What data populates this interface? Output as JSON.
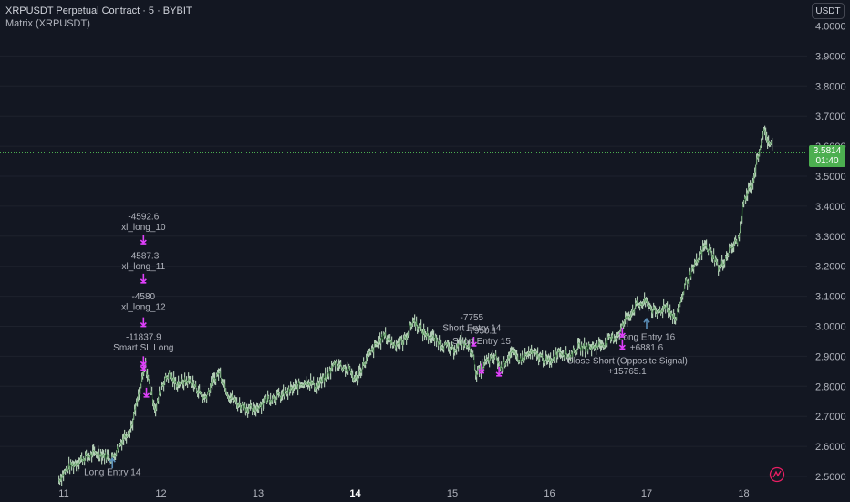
{
  "header": {
    "title": "XRPUSDT Perpetual Contract · 5 · BYBIT",
    "indicator": "Matrix (XRPUSDT)"
  },
  "currency_button": "USDT",
  "current_price": {
    "price": "3.5814",
    "countdown": "01:40"
  },
  "colors": {
    "background": "#131722",
    "candle": "#c8e6c9",
    "trade_marker": "#e040fb",
    "entry_arrow": "#5b8fb9",
    "price_tag": "#4caf50",
    "axis_text": "#b2b5be"
  },
  "chart_data": {
    "type": "line",
    "price_axis": {
      "ticks": [
        "4.0000",
        "3.9000",
        "3.8000",
        "3.7000",
        "3.6000",
        "3.5000",
        "3.4000",
        "3.3000",
        "3.2000",
        "3.1000",
        "3.0000",
        "2.9000",
        "2.8000",
        "2.7000",
        "2.6000",
        "2.5000"
      ],
      "range": [
        2.5,
        4.0
      ]
    },
    "time_axis": {
      "ticks": [
        {
          "label": "11",
          "bold": false
        },
        {
          "label": "12",
          "bold": false
        },
        {
          "label": "13",
          "bold": false
        },
        {
          "label": "14",
          "bold": true
        },
        {
          "label": "15",
          "bold": false
        },
        {
          "label": "16",
          "bold": false
        },
        {
          "label": "17",
          "bold": false
        },
        {
          "label": "18",
          "bold": false
        }
      ],
      "range": [
        10.95,
        18.3
      ]
    },
    "series": [
      {
        "values": [
          [
            10.95,
            2.49
          ],
          [
            11.05,
            2.53
          ],
          [
            11.2,
            2.56
          ],
          [
            11.35,
            2.58
          ],
          [
            11.5,
            2.56
          ],
          [
            11.6,
            2.62
          ],
          [
            11.7,
            2.67
          ],
          [
            11.78,
            2.78
          ],
          [
            11.84,
            2.87
          ],
          [
            11.9,
            2.78
          ],
          [
            11.95,
            2.72
          ],
          [
            12.0,
            2.8
          ],
          [
            12.08,
            2.84
          ],
          [
            12.15,
            2.81
          ],
          [
            12.3,
            2.82
          ],
          [
            12.45,
            2.76
          ],
          [
            12.6,
            2.85
          ],
          [
            12.7,
            2.77
          ],
          [
            12.8,
            2.74
          ],
          [
            12.95,
            2.72
          ],
          [
            13.1,
            2.76
          ],
          [
            13.25,
            2.77
          ],
          [
            13.4,
            2.8
          ],
          [
            13.5,
            2.82
          ],
          [
            13.6,
            2.8
          ],
          [
            13.7,
            2.83
          ],
          [
            13.8,
            2.88
          ],
          [
            13.95,
            2.85
          ],
          [
            14.0,
            2.82
          ],
          [
            14.1,
            2.88
          ],
          [
            14.2,
            2.93
          ],
          [
            14.3,
            2.97
          ],
          [
            14.4,
            2.94
          ],
          [
            14.5,
            2.95
          ],
          [
            14.6,
            3.02
          ],
          [
            14.7,
            2.98
          ],
          [
            14.8,
            2.96
          ],
          [
            14.9,
            2.94
          ],
          [
            15.0,
            2.92
          ],
          [
            15.1,
            2.95
          ],
          [
            15.2,
            2.92
          ],
          [
            15.25,
            2.84
          ],
          [
            15.35,
            2.88
          ],
          [
            15.45,
            2.9
          ],
          [
            15.5,
            2.86
          ],
          [
            15.6,
            2.91
          ],
          [
            15.7,
            2.89
          ],
          [
            15.8,
            2.91
          ],
          [
            15.9,
            2.9
          ],
          [
            16.0,
            2.88
          ],
          [
            16.1,
            2.92
          ],
          [
            16.2,
            2.9
          ],
          [
            16.3,
            2.93
          ],
          [
            16.45,
            2.93
          ],
          [
            16.6,
            2.95
          ],
          [
            16.7,
            2.97
          ],
          [
            16.8,
            3.03
          ],
          [
            16.9,
            3.07
          ],
          [
            17.0,
            3.08
          ],
          [
            17.1,
            3.04
          ],
          [
            17.2,
            3.07
          ],
          [
            17.3,
            3.02
          ],
          [
            17.4,
            3.14
          ],
          [
            17.5,
            3.2
          ],
          [
            17.6,
            3.27
          ],
          [
            17.68,
            3.24
          ],
          [
            17.75,
            3.19
          ],
          [
            17.85,
            3.25
          ],
          [
            17.95,
            3.29
          ],
          [
            18.0,
            3.41
          ],
          [
            18.1,
            3.49
          ],
          [
            18.15,
            3.57
          ],
          [
            18.2,
            3.65
          ],
          [
            18.25,
            3.62
          ],
          [
            18.3,
            3.6
          ]
        ]
      }
    ],
    "trade_labels": [
      {
        "lines": [
          "-4592.6",
          "xl_long_10"
        ],
        "x": 11.82,
        "y": 3.355
      },
      {
        "lines": [
          "-4587.3",
          "xl_long_11"
        ],
        "x": 11.82,
        "y": 3.225
      },
      {
        "lines": [
          "-4580",
          "xl_long_12"
        ],
        "x": 11.82,
        "y": 3.09
      },
      {
        "lines": [
          "-11837.9",
          "Smart SL Long"
        ],
        "x": 11.82,
        "y": 2.955
      },
      {
        "lines": [
          "Long Entry 14"
        ],
        "x": 11.5,
        "y": 2.505
      },
      {
        "lines": [
          "-7755",
          "Short Entry 14"
        ],
        "x": 15.2,
        "y": 3.02
      },
      {
        "lines": [
          "-7950.1",
          "Short Entry 15"
        ],
        "x": 15.3,
        "y": 2.975
      },
      {
        "lines": [
          "Long Entry 16",
          "+6881.6"
        ],
        "x": 17.0,
        "y": 2.955
      },
      {
        "lines": [
          "Close Short (Opposite Signal)",
          "+15765.1"
        ],
        "x": 16.8,
        "y": 2.875
      }
    ]
  }
}
